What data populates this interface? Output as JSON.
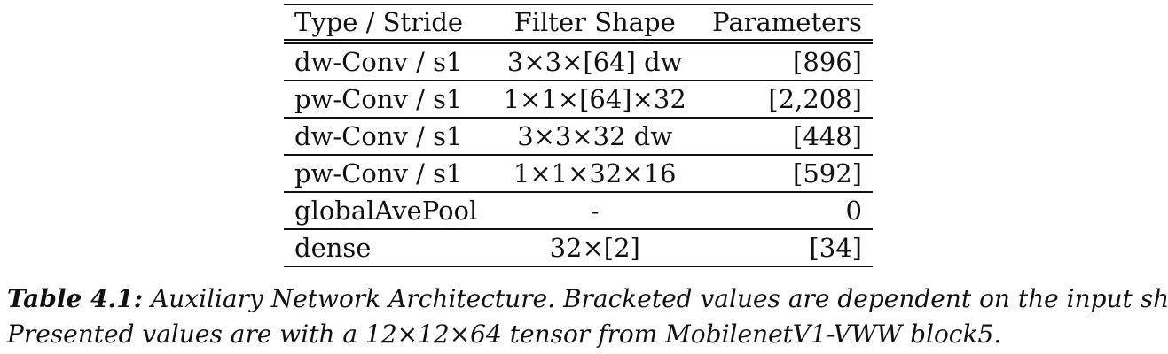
{
  "table": {
    "headers": [
      "Type / Stride",
      "Filter Shape",
      "Parameters"
    ],
    "rows": [
      [
        "dw-Conv / s1",
        "3×3×[64] dw",
        "[896]"
      ],
      [
        "pw-Conv / s1",
        "1×1×[64]×32",
        "[2,208]"
      ],
      [
        "dw-Conv / s1",
        "3×3×32 dw",
        "[448]"
      ],
      [
        "pw-Conv / s1",
        "1×1×32×16",
        "[592]"
      ],
      [
        "globalAvePool",
        "-",
        "0"
      ],
      [
        "dense",
        "32×[2]",
        "[34]"
      ]
    ]
  },
  "caption": {
    "label": "Table 4.1:",
    "line1": "Auxiliary Network Architecture. Bracketed values are dependent on the input shape.",
    "line2": "Presented values are with a 12×12×64 tensor from MobilenetV1-VWW block5."
  }
}
